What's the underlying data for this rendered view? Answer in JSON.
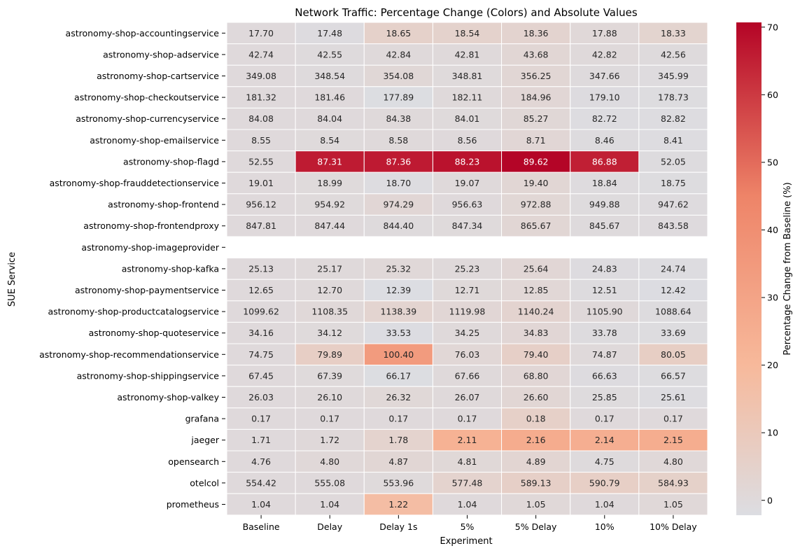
{
  "chart_data": {
    "type": "heatmap",
    "title": "Network Traffic: Percentage Change (Colors) and Absolute Values",
    "xlabel": "Experiment",
    "ylabel": "SUE Service",
    "colorbar_label": "Percentage Change from Baseline (%)",
    "colorbar_ticks": [
      "0",
      "10",
      "20",
      "30",
      "40",
      "50",
      "60",
      "70"
    ],
    "colorbar_range": [
      -2.2,
      70.7
    ],
    "colormap": "coolwarm (centered at 0)",
    "colormap_stops": [
      "#dcdde2",
      "#f7b99b",
      "#ee8468",
      "#b40426"
    ],
    "columns": [
      "Baseline",
      "Delay",
      "Delay 1s",
      "5%",
      "5% Delay",
      "10%",
      "10% Delay"
    ],
    "rows": [
      {
        "label": "astronomy-shop-accountingservice",
        "values": [
          "17.70",
          "17.48",
          "18.65",
          "18.54",
          "18.36",
          "17.88",
          "18.33"
        ],
        "pct": [
          0,
          -1.2,
          5.4,
          4.7,
          3.7,
          1.0,
          3.6
        ]
      },
      {
        "label": "astronomy-shop-adservice",
        "values": [
          "42.74",
          "42.55",
          "42.84",
          "42.81",
          "43.68",
          "42.82",
          "42.56"
        ],
        "pct": [
          0,
          -0.4,
          0.2,
          0.2,
          2.2,
          0.2,
          -0.4
        ]
      },
      {
        "label": "astronomy-shop-cartservice",
        "values": [
          "349.08",
          "348.54",
          "354.08",
          "348.81",
          "356.25",
          "347.66",
          "345.99"
        ],
        "pct": [
          0,
          -0.2,
          1.4,
          -0.1,
          2.1,
          -0.4,
          -0.9
        ]
      },
      {
        "label": "astronomy-shop-checkoutservice",
        "values": [
          "181.32",
          "181.46",
          "177.89",
          "182.11",
          "184.96",
          "179.10",
          "178.73"
        ],
        "pct": [
          0,
          0.1,
          -1.9,
          0.4,
          2.0,
          -1.2,
          -1.4
        ]
      },
      {
        "label": "astronomy-shop-currencyservice",
        "values": [
          "84.08",
          "84.04",
          "84.38",
          "84.01",
          "85.27",
          "82.72",
          "82.82"
        ],
        "pct": [
          0,
          0.0,
          0.4,
          -0.1,
          1.4,
          -1.6,
          -1.5
        ]
      },
      {
        "label": "astronomy-shop-emailservice",
        "values": [
          "8.55",
          "8.54",
          "8.58",
          "8.56",
          "8.71",
          "8.46",
          "8.41"
        ],
        "pct": [
          0,
          -0.1,
          0.4,
          0.1,
          1.9,
          -1.1,
          -1.6
        ]
      },
      {
        "label": "astronomy-shop-flagd",
        "values": [
          "52.55",
          "87.31",
          "87.36",
          "88.23",
          "89.62",
          "86.88",
          "52.05"
        ],
        "pct": [
          0,
          66.1,
          66.2,
          67.9,
          70.5,
          65.3,
          -1.0
        ]
      },
      {
        "label": "astronomy-shop-frauddetectionservice",
        "values": [
          "19.01",
          "18.99",
          "18.70",
          "19.07",
          "19.40",
          "18.84",
          "18.75"
        ],
        "pct": [
          0,
          -0.1,
          -1.6,
          0.3,
          2.1,
          -0.9,
          -1.4
        ]
      },
      {
        "label": "astronomy-shop-frontend",
        "values": [
          "956.12",
          "954.92",
          "974.29",
          "956.63",
          "972.88",
          "949.88",
          "947.62"
        ],
        "pct": [
          0,
          -0.1,
          1.9,
          0.1,
          1.8,
          -0.7,
          -0.9
        ]
      },
      {
        "label": "astronomy-shop-frontendproxy",
        "values": [
          "847.81",
          "847.44",
          "844.40",
          "847.34",
          "865.67",
          "845.67",
          "843.58"
        ],
        "pct": [
          0,
          0.0,
          -0.4,
          -0.1,
          2.1,
          -0.3,
          -0.5
        ]
      },
      {
        "label": "astronomy-shop-imageprovider",
        "values": [
          "",
          "",
          "",
          "",
          "",
          "",
          ""
        ],
        "pct": [
          null,
          null,
          null,
          null,
          null,
          null,
          null
        ]
      },
      {
        "label": "astronomy-shop-kafka",
        "values": [
          "25.13",
          "25.17",
          "25.32",
          "25.23",
          "25.64",
          "24.83",
          "24.74"
        ],
        "pct": [
          0,
          0.2,
          0.8,
          0.4,
          2.0,
          -1.2,
          -1.6
        ]
      },
      {
        "label": "astronomy-shop-paymentservice",
        "values": [
          "12.65",
          "12.70",
          "12.39",
          "12.71",
          "12.85",
          "12.51",
          "12.42"
        ],
        "pct": [
          0,
          0.4,
          -2.1,
          0.5,
          1.6,
          -1.1,
          -1.8
        ]
      },
      {
        "label": "astronomy-shop-productcatalogservice",
        "values": [
          "1099.62",
          "1108.35",
          "1138.39",
          "1119.98",
          "1140.24",
          "1105.90",
          "1088.64"
        ],
        "pct": [
          0,
          0.8,
          3.5,
          1.9,
          3.7,
          0.6,
          -1.0
        ]
      },
      {
        "label": "astronomy-shop-quoteservice",
        "values": [
          "34.16",
          "34.12",
          "33.53",
          "34.25",
          "34.83",
          "33.78",
          "33.69"
        ],
        "pct": [
          0,
          -0.1,
          -1.8,
          0.3,
          2.0,
          -1.1,
          -1.4
        ]
      },
      {
        "label": "astronomy-shop-recommendationservice",
        "values": [
          "74.75",
          "79.89",
          "100.40",
          "76.03",
          "79.40",
          "74.87",
          "80.05"
        ],
        "pct": [
          0,
          6.9,
          34.3,
          1.7,
          6.2,
          0.2,
          7.1
        ]
      },
      {
        "label": "astronomy-shop-shippingservice",
        "values": [
          "67.45",
          "67.39",
          "66.17",
          "67.66",
          "68.80",
          "66.63",
          "66.57"
        ],
        "pct": [
          0,
          -0.1,
          -1.9,
          0.3,
          2.0,
          -1.2,
          -1.3
        ]
      },
      {
        "label": "astronomy-shop-valkey",
        "values": [
          "26.03",
          "26.10",
          "26.32",
          "26.07",
          "26.60",
          "25.85",
          "25.61"
        ],
        "pct": [
          0,
          0.3,
          1.1,
          0.2,
          2.2,
          -0.7,
          -1.6
        ]
      },
      {
        "label": "grafana",
        "values": [
          "0.17",
          "0.17",
          "0.17",
          "0.17",
          "0.18",
          "0.17",
          "0.17"
        ],
        "pct": [
          0,
          0,
          0,
          0,
          5.9,
          0,
          0
        ]
      },
      {
        "label": "jaeger",
        "values": [
          "1.71",
          "1.72",
          "1.78",
          "2.11",
          "2.16",
          "2.14",
          "2.15"
        ],
        "pct": [
          0,
          0.6,
          4.1,
          23.4,
          26.3,
          25.1,
          25.7
        ]
      },
      {
        "label": "opensearch",
        "values": [
          "4.76",
          "4.80",
          "4.87",
          "4.81",
          "4.89",
          "4.75",
          "4.80"
        ],
        "pct": [
          0,
          0.8,
          2.3,
          1.1,
          2.7,
          -0.2,
          0.8
        ]
      },
      {
        "label": "otelcol",
        "values": [
          "554.42",
          "555.08",
          "553.96",
          "577.48",
          "589.13",
          "590.79",
          "584.93"
        ],
        "pct": [
          0,
          0.1,
          -0.1,
          4.2,
          6.3,
          6.6,
          5.5
        ]
      },
      {
        "label": "prometheus",
        "values": [
          "1.04",
          "1.04",
          "1.22",
          "1.04",
          "1.05",
          "1.04",
          "1.05"
        ],
        "pct": [
          0,
          0,
          17.3,
          0,
          1.0,
          0,
          1.0
        ]
      }
    ]
  }
}
